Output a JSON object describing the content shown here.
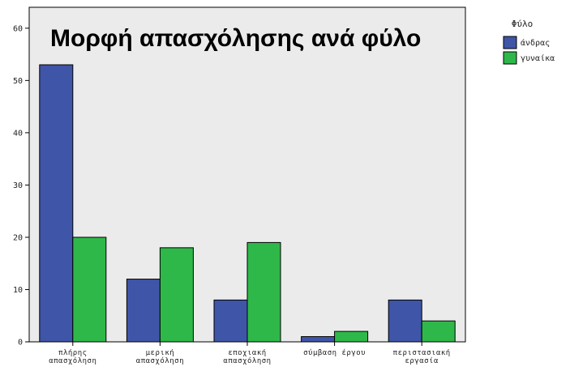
{
  "chart_data": {
    "type": "bar",
    "title": "Μορφή απασχόλησης ανά φύλο",
    "xlabel": "",
    "ylabel": "",
    "ylim": [
      0,
      64
    ],
    "yticks": [
      0,
      10,
      20,
      30,
      40,
      50,
      60
    ],
    "grid": false,
    "legend_position": "top-right",
    "legend_title": "Φύλο",
    "categories": [
      [
        "πλήρης",
        "απασχόληση"
      ],
      [
        "μερική",
        "απασχόληση"
      ],
      [
        "εποχιακή",
        "απασχόληση"
      ],
      [
        "σύμβαση έργου"
      ],
      [
        "περιστασιακή",
        "εργασία"
      ]
    ],
    "series": [
      {
        "name": "άνδρας",
        "color": "#3f55a8",
        "values": [
          53,
          12,
          8,
          1,
          8
        ]
      },
      {
        "name": "γυναίκα",
        "color": "#2fb84a",
        "values": [
          20,
          18,
          19,
          2,
          4
        ]
      }
    ],
    "plot_background": "#ebebeb"
  }
}
